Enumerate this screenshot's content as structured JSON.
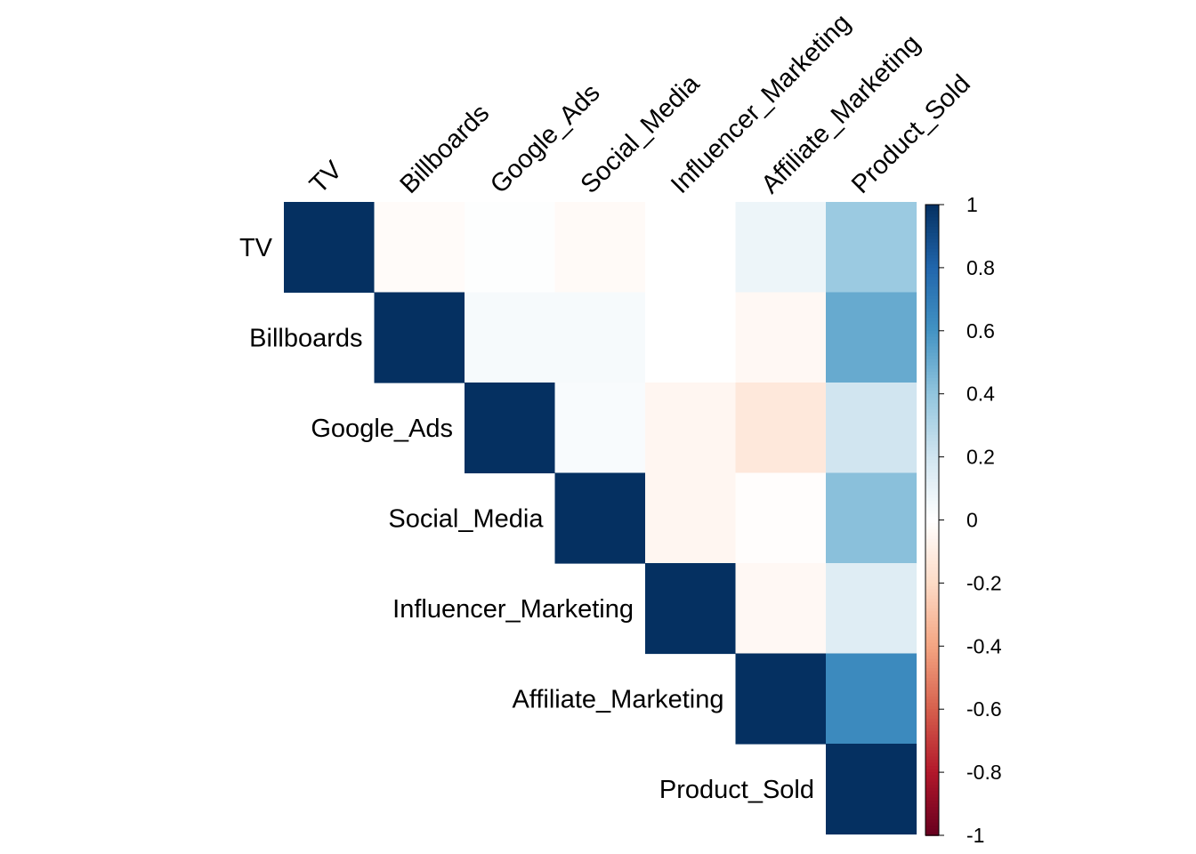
{
  "chart_data": {
    "type": "heatmap",
    "layout": "upper-triangle",
    "variables": [
      "TV",
      "Billboards",
      "Google_Ads",
      "Social_Media",
      "Influencer_Marketing",
      "Affiliate_Marketing",
      "Product_Sold"
    ],
    "matrix": [
      [
        1.0,
        -0.02,
        0.01,
        -0.03,
        0.0,
        0.08,
        0.37
      ],
      [
        null,
        1.0,
        0.04,
        0.04,
        0.0,
        -0.04,
        0.51
      ],
      [
        null,
        null,
        1.0,
        0.03,
        -0.05,
        -0.13,
        0.2
      ],
      [
        null,
        null,
        null,
        1.0,
        -0.05,
        -0.01,
        0.42
      ],
      [
        null,
        null,
        null,
        null,
        1.0,
        -0.04,
        0.14
      ],
      [
        null,
        null,
        null,
        null,
        null,
        1.0,
        0.64
      ],
      [
        null,
        null,
        null,
        null,
        null,
        null,
        1.0
      ]
    ],
    "colorbar": {
      "min": -1,
      "max": 1,
      "ticks": [
        "1",
        "0.8",
        "0.6",
        "0.4",
        "0.2",
        "0",
        "-0.2",
        "-0.4",
        "-0.6",
        "-0.8",
        "-1"
      ],
      "tick_values": [
        1,
        0.8,
        0.6,
        0.4,
        0.2,
        0,
        -0.2,
        -0.4,
        -0.6,
        -0.8,
        -1
      ],
      "palette": [
        "#67001F",
        "#B2182B",
        "#D6604D",
        "#F4A582",
        "#FDDBC7",
        "#FFFFFF",
        "#D1E5F0",
        "#92C5DE",
        "#4393C3",
        "#2166AC",
        "#053061"
      ]
    }
  }
}
